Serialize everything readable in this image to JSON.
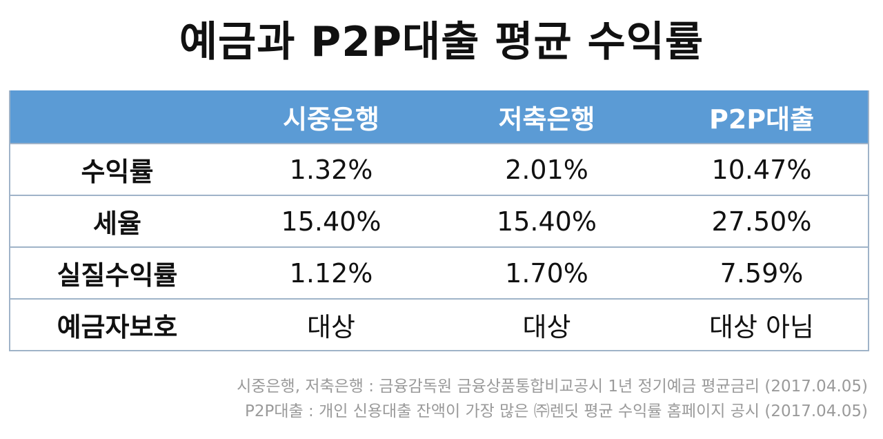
{
  "title": "예금과 P2P대출 평균 수익률",
  "table": {
    "header": [
      "",
      "시중은행",
      "저축은행",
      "P2P대출"
    ],
    "rows": [
      {
        "label": "수익률",
        "values": [
          "1.32%",
          "2.01%",
          "10.47%"
        ]
      },
      {
        "label": "세율",
        "values": [
          "15.40%",
          "15.40%",
          "27.50%"
        ]
      },
      {
        "label": "실질수익률",
        "values": [
          "1.12%",
          "1.70%",
          "7.59%"
        ]
      },
      {
        "label": "예금자보호",
        "values": [
          "대상",
          "대상",
          "대상 아님"
        ]
      }
    ]
  },
  "footnotes": [
    "시중은행, 저축은행 : 금융감독원 금융상품통합비교공시 1년 정기예금 평균금리 (2017.04.05)",
    "P2P대출 : 개인 신용대출 잔액이 가장 많은 ㈜렌딧 평균 수익률 홈페이지 공시 (2017.04.05)"
  ],
  "colors": {
    "header_bg": "#5b9bd5",
    "header_text": "#ffffff",
    "border": "#9fb3c8",
    "footnote": "#9a9a9a"
  },
  "chart_data": {
    "type": "table",
    "title": "예금과 P2P대출 평균 수익률",
    "columns": [
      "시중은행",
      "저축은행",
      "P2P대출"
    ],
    "rows": [
      "수익률",
      "세율",
      "실질수익률",
      "예금자보호"
    ],
    "series": [
      {
        "name": "시중은행",
        "values": [
          1.32,
          15.4,
          1.12
        ],
        "deposit_protection": "대상"
      },
      {
        "name": "저축은행",
        "values": [
          2.01,
          15.4,
          1.7
        ],
        "deposit_protection": "대상"
      },
      {
        "name": "P2P대출",
        "values": [
          10.47,
          27.5,
          7.59
        ],
        "deposit_protection": "대상 아님"
      }
    ],
    "units": "%",
    "notes": [
      "시중은행, 저축은행 : 금융감독원 금융상품통합비교공시 1년 정기예금 평균금리 (2017.04.05)",
      "P2P대출 : 개인 신용대출 잔액이 가장 많은 ㈜렌딧 평균 수익률 홈페이지 공시 (2017.04.05)"
    ]
  }
}
